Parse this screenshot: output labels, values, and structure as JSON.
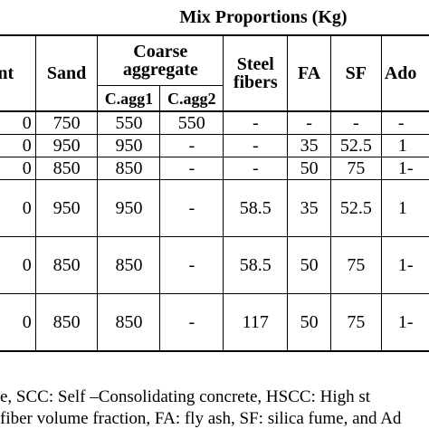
{
  "table": {
    "title": "Mix Proportions (Kg)",
    "headers": {
      "cement": "ent",
      "sand": "Sand",
      "coarse_line1": "Coarse",
      "coarse_line2": "aggregate",
      "c_agg1": "C.agg1",
      "c_agg2": "C.agg2",
      "steel_line1": "Steel",
      "steel_line2": "fibers",
      "fa": "FA",
      "sf": "SF",
      "admix": "Ado"
    },
    "rows": [
      {
        "cement": "0",
        "sand": "750",
        "cagg1": "550",
        "cagg2": "550",
        "steel": "-",
        "fa": "-",
        "sf": "-",
        "admix": "-"
      },
      {
        "cement": "0",
        "sand": "950",
        "cagg1": "950",
        "cagg2": "-",
        "steel": "-",
        "fa": "35",
        "sf": "52.5",
        "admix": "1"
      },
      {
        "cement": "0",
        "sand": "850",
        "cagg1": "850",
        "cagg2": "-",
        "steel": "-",
        "fa": "50",
        "sf": "75",
        "admix": "1-"
      },
      {
        "cement": "0",
        "sand": "950",
        "cagg1": "950",
        "cagg2": "-",
        "steel": "58.5",
        "fa": "35",
        "sf": "52.5",
        "admix": "1"
      },
      {
        "cement": "0",
        "sand": "850",
        "cagg1": "850",
        "cagg2": "-",
        "steel": "58.5",
        "fa": "50",
        "sf": "75",
        "admix": "1-"
      },
      {
        "cement": "0",
        "sand": "850",
        "cagg1": "850",
        "cagg2": "-",
        "steel": "117",
        "fa": "50",
        "sf": "75",
        "admix": "1-"
      }
    ]
  },
  "caption": {
    "line1": "e, SCC: Self –Consolidating concrete, HSCC: High st",
    "line2": "fiber volume fraction, FA: fly ash, SF: silica fume, and Ad"
  }
}
